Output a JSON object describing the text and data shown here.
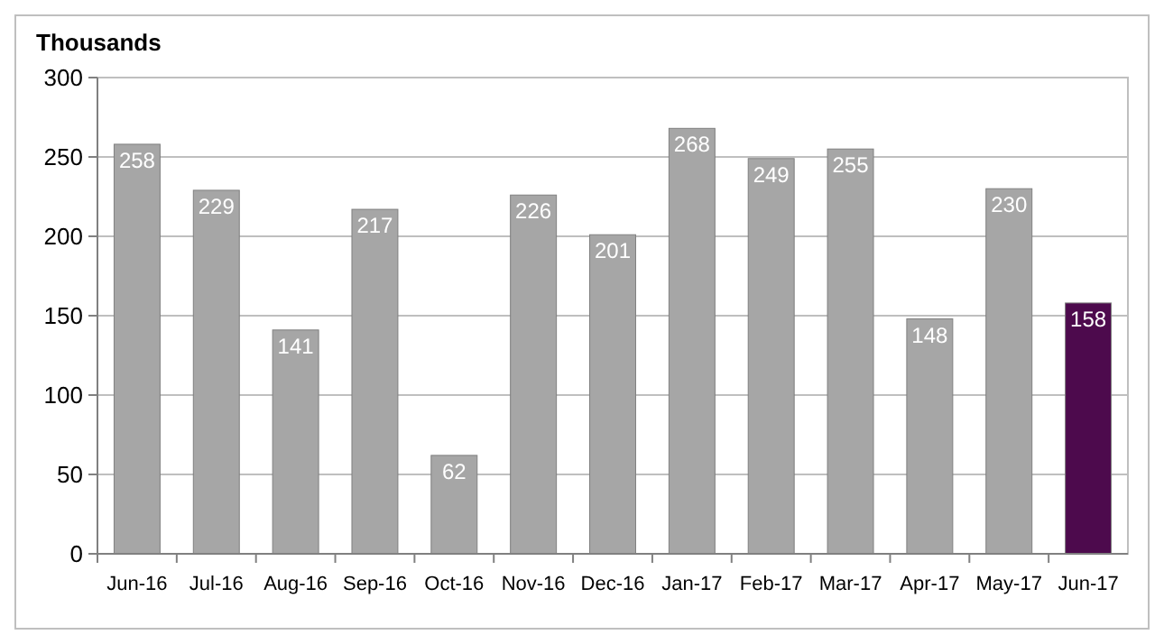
{
  "chart_data": {
    "type": "bar",
    "ylabel": "Thousands",
    "categories": [
      "Jun-16",
      "Jul-16",
      "Aug-16",
      "Sep-16",
      "Oct-16",
      "Nov-16",
      "Dec-16",
      "Jan-17",
      "Feb-17",
      "Mar-17",
      "Apr-17",
      "May-17",
      "Jun-17"
    ],
    "values": [
      258,
      229,
      141,
      217,
      62,
      226,
      201,
      268,
      249,
      255,
      148,
      230,
      158
    ],
    "colors": [
      "#a6a6a6",
      "#a6a6a6",
      "#a6a6a6",
      "#a6a6a6",
      "#a6a6a6",
      "#a6a6a6",
      "#a6a6a6",
      "#a6a6a6",
      "#a6a6a6",
      "#a6a6a6",
      "#a6a6a6",
      "#a6a6a6",
      "#4d0a4d"
    ],
    "ylim": [
      0,
      300
    ],
    "yticks": [
      0,
      50,
      100,
      150,
      200,
      250,
      300
    ],
    "grid": "y",
    "data_labels": true
  }
}
